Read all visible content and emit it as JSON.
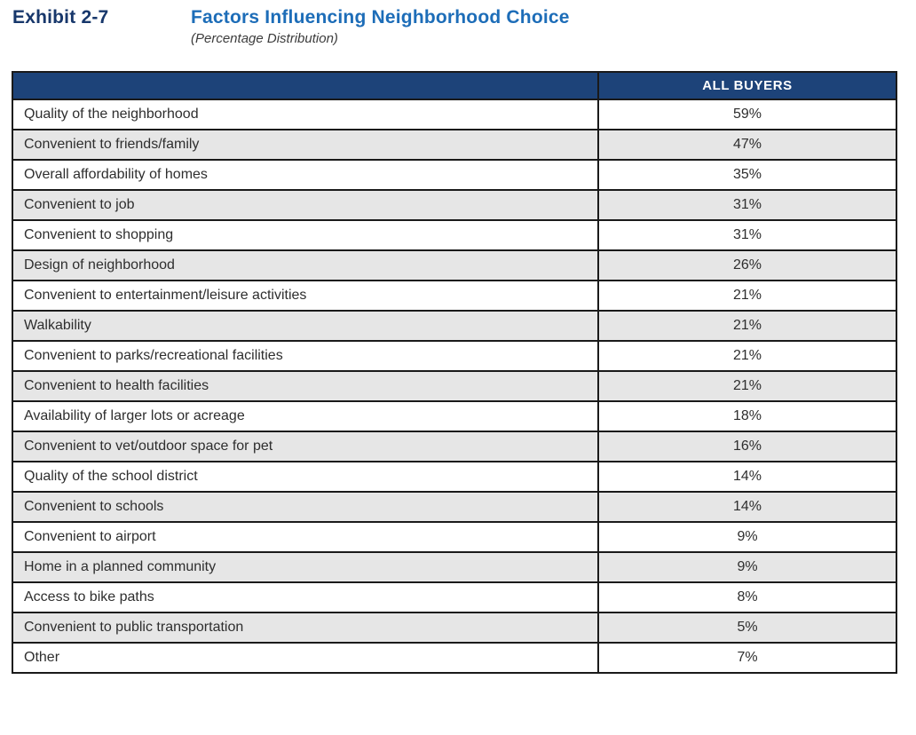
{
  "exhibit": {
    "label": "Exhibit 2-7",
    "title": "Factors Influencing Neighborhood Choice",
    "subtitle": "(Percentage Distribution)"
  },
  "table": {
    "column_header": "ALL BUYERS",
    "rows": [
      {
        "factor": "Quality of the neighborhood",
        "value": "59%"
      },
      {
        "factor": "Convenient to friends/family",
        "value": "47%"
      },
      {
        "factor": "Overall affordability of homes",
        "value": "35%"
      },
      {
        "factor": "Convenient to job",
        "value": "31%"
      },
      {
        "factor": "Convenient to shopping",
        "value": "31%"
      },
      {
        "factor": "Design of neighborhood",
        "value": "26%"
      },
      {
        "factor": "Convenient to entertainment/leisure activities",
        "value": "21%"
      },
      {
        "factor": "Walkability",
        "value": "21%"
      },
      {
        "factor": "Convenient to parks/recreational facilities",
        "value": "21%"
      },
      {
        "factor": "Convenient to health facilities",
        "value": "21%"
      },
      {
        "factor": "Availability of larger lots or acreage",
        "value": "18%"
      },
      {
        "factor": "Convenient to vet/outdoor space for pet",
        "value": "16%"
      },
      {
        "factor": "Quality of the school district",
        "value": "14%"
      },
      {
        "factor": "Convenient to schools",
        "value": "14%"
      },
      {
        "factor": "Convenient to airport",
        "value": "9%"
      },
      {
        "factor": "Home in a planned community",
        "value": "9%"
      },
      {
        "factor": "Access to bike paths",
        "value": "8%"
      },
      {
        "factor": "Convenient to public transportation",
        "value": "5%"
      },
      {
        "factor": "Other",
        "value": "7%"
      }
    ]
  },
  "chart_data": {
    "type": "table",
    "title": "Factors Influencing Neighborhood Choice",
    "subtitle": "(Percentage Distribution)",
    "columns": [
      "Factor",
      "ALL BUYERS"
    ],
    "categories": [
      "Quality of the neighborhood",
      "Convenient to friends/family",
      "Overall affordability of homes",
      "Convenient to job",
      "Convenient to shopping",
      "Design of neighborhood",
      "Convenient to entertainment/leisure activities",
      "Walkability",
      "Convenient to parks/recreational facilities",
      "Convenient to health facilities",
      "Availability of larger lots or acreage",
      "Convenient to vet/outdoor space for pet",
      "Quality of the school district",
      "Convenient to schools",
      "Convenient to airport",
      "Home in a planned community",
      "Access to bike paths",
      "Convenient to public transportation",
      "Other"
    ],
    "values": [
      59,
      47,
      35,
      31,
      31,
      26,
      21,
      21,
      21,
      21,
      18,
      16,
      14,
      14,
      9,
      9,
      8,
      5,
      7
    ],
    "unit": "%"
  },
  "colors": {
    "header_bg": "#1d4379",
    "header_text": "#ffffff",
    "header_divider": "#b9c7da",
    "row_bg": "#ffffff",
    "row_alt_bg": "#e6e6e6",
    "border": "#1a1a1a",
    "exhibit_label_color": "#17376b",
    "title_color": "#1d6db8",
    "subtitle_color": "#3c3c3c",
    "body_text": "#2e2e2e"
  }
}
